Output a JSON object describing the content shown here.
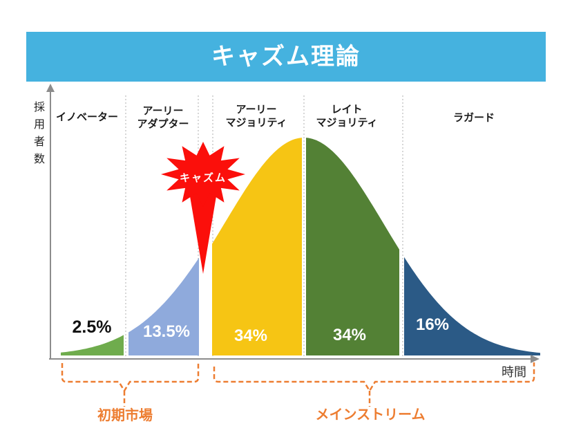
{
  "title": "キャズム理論",
  "colors": {
    "banner": "#45B2DF",
    "chasm_burst": "#FB0F0B",
    "brace": "#ED7D31",
    "axis": "#8C8C8C",
    "divider": "#BBBBBB"
  },
  "axes": {
    "y_label": "採用者数",
    "x_label": "時間"
  },
  "chasm": {
    "label": "キャズム"
  },
  "market_phases": [
    {
      "label": "初期市場"
    },
    {
      "label": "メインストリーム"
    }
  ],
  "chart_data": {
    "type": "area",
    "title": "キャズム理論",
    "xlabel": "時間",
    "ylabel": "採用者数",
    "curve": "bell-curve (technology adoption lifecycle split into 5 adopter segments)",
    "segments": [
      {
        "name": "イノベーター",
        "name_lines": [
          "イノベーター"
        ],
        "percent_label": "2.5%",
        "value": 2.5,
        "color": "#6FAC4D"
      },
      {
        "name": "アーリーアダプター",
        "name_lines": [
          "アーリー",
          "アダプター"
        ],
        "percent_label": "13.5%",
        "value": 13.5,
        "color": "#8FAADC"
      },
      {
        "name": "アーリーマジョリティ",
        "name_lines": [
          "アーリー",
          "マジョリティ"
        ],
        "percent_label": "34%",
        "value": 34,
        "color": "#F6C514"
      },
      {
        "name": "レイトマジョリティ",
        "name_lines": [
          "レイト",
          "マジョリティ"
        ],
        "percent_label": "34%",
        "value": 34,
        "color": "#538135"
      },
      {
        "name": "ラガード",
        "name_lines": [
          "ラガード"
        ],
        "percent_label": "16%",
        "value": 16,
        "color": "#2B5A86"
      }
    ],
    "annotations": [
      {
        "label": "キャズム",
        "between": [
          "アーリーアダプター",
          "アーリーマジョリティ"
        ]
      },
      {
        "label": "初期市場",
        "covers": [
          "イノベーター",
          "アーリーアダプター"
        ]
      },
      {
        "label": "メインストリーム",
        "covers": [
          "アーリーマジョリティ",
          "レイトマジョリティ",
          "ラガード"
        ]
      }
    ]
  }
}
